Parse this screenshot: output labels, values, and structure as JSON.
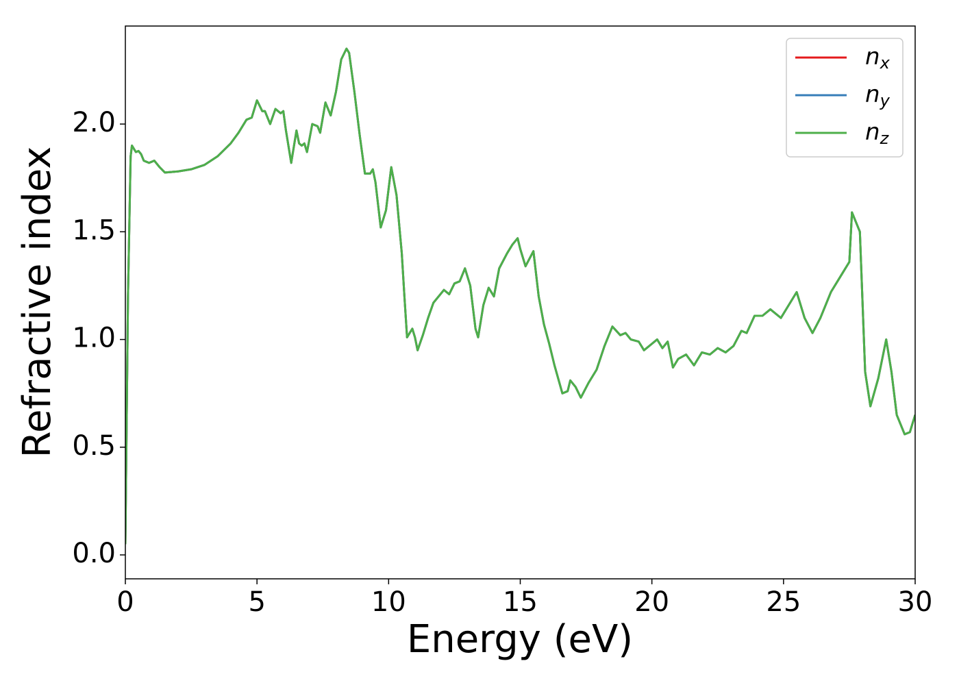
{
  "chart_data": {
    "type": "line",
    "xlabel": "Energy (eV)",
    "ylabel": "Refractive index",
    "x": [
      0,
      0.1,
      0.2,
      0.25,
      0.4,
      0.5,
      0.6,
      0.7,
      0.9,
      1.1,
      1.3,
      1.5,
      2,
      2.5,
      3,
      3.5,
      4,
      4.3,
      4.6,
      4.8,
      5.0,
      5.2,
      5.3,
      5.5,
      5.7,
      5.9,
      6.0,
      6.1,
      6.3,
      6.5,
      6.6,
      6.7,
      6.8,
      6.9,
      7.1,
      7.3,
      7.4,
      7.6,
      7.8,
      8.0,
      8.2,
      8.4,
      8.5,
      8.7,
      8.9,
      9.1,
      9.3,
      9.4,
      9.5,
      9.7,
      9.9,
      10.0,
      10.1,
      10.3,
      10.5,
      10.6,
      10.7,
      10.9,
      11.0,
      11.1,
      11.3,
      11.5,
      11.7,
      11.9,
      12.1,
      12.3,
      12.5,
      12.7,
      12.9,
      13.1,
      13.3,
      13.4,
      13.6,
      13.8,
      14.0,
      14.2,
      14.5,
      14.7,
      14.9,
      15.0,
      15.2,
      15.5,
      15.7,
      15.9,
      16.1,
      16.3,
      16.6,
      16.8,
      16.9,
      17.1,
      17.3,
      17.6,
      17.9,
      18.2,
      18.5,
      18.8,
      19.0,
      19.2,
      19.5,
      19.7,
      20.0,
      20.2,
      20.4,
      20.6,
      20.8,
      21.0,
      21.3,
      21.6,
      21.9,
      22.2,
      22.5,
      22.8,
      23.1,
      23.4,
      23.6,
      23.9,
      24.2,
      24.5,
      24.9,
      25.2,
      25.5,
      25.8,
      26.1,
      26.4,
      26.8,
      27.0,
      27.3,
      27.5,
      27.6,
      27.9,
      28.1,
      28.3,
      28.6,
      28.9,
      29.1,
      29.3,
      29.6,
      29.8,
      30.0
    ],
    "series": [
      {
        "name": "nx",
        "color": "#e41a1c",
        "values": [
          0.05,
          1.2,
          1.85,
          1.9,
          1.87,
          1.875,
          1.86,
          1.83,
          1.82,
          1.83,
          1.8,
          1.775,
          1.78,
          1.79,
          1.81,
          1.85,
          1.91,
          1.96,
          2.02,
          2.03,
          2.11,
          2.06,
          2.06,
          2.0,
          2.07,
          2.05,
          2.06,
          1.97,
          1.82,
          1.97,
          1.91,
          1.9,
          1.91,
          1.87,
          2.0,
          1.99,
          1.96,
          2.1,
          2.04,
          2.15,
          2.3,
          2.35,
          2.33,
          2.15,
          1.95,
          1.77,
          1.77,
          1.79,
          1.73,
          1.52,
          1.6,
          1.7,
          1.8,
          1.67,
          1.4,
          1.2,
          1.01,
          1.05,
          1.01,
          0.95,
          1.02,
          1.1,
          1.17,
          1.2,
          1.23,
          1.21,
          1.26,
          1.27,
          1.33,
          1.25,
          1.05,
          1.01,
          1.16,
          1.24,
          1.2,
          1.33,
          1.4,
          1.44,
          1.47,
          1.42,
          1.34,
          1.41,
          1.2,
          1.07,
          0.98,
          0.88,
          0.75,
          0.76,
          0.81,
          0.78,
          0.73,
          0.8,
          0.86,
          0.97,
          1.06,
          1.02,
          1.03,
          1.0,
          0.99,
          0.95,
          0.98,
          1.0,
          0.96,
          0.99,
          0.87,
          0.91,
          0.93,
          0.88,
          0.94,
          0.93,
          0.96,
          0.94,
          0.97,
          1.04,
          1.03,
          1.11,
          1.11,
          1.14,
          1.1,
          1.16,
          1.22,
          1.1,
          1.03,
          1.1,
          1.22,
          1.26,
          1.32,
          1.36,
          1.59,
          1.5,
          0.85,
          0.69,
          0.82,
          1.0,
          0.85,
          0.65,
          0.56,
          0.57,
          0.65
        ]
      },
      {
        "name": "ny",
        "color": "#377eb8",
        "values": [
          0.05,
          1.2,
          1.85,
          1.9,
          1.87,
          1.875,
          1.86,
          1.83,
          1.82,
          1.83,
          1.8,
          1.775,
          1.78,
          1.79,
          1.81,
          1.85,
          1.91,
          1.96,
          2.02,
          2.03,
          2.11,
          2.06,
          2.06,
          2.0,
          2.07,
          2.05,
          2.06,
          1.97,
          1.82,
          1.97,
          1.91,
          1.9,
          1.91,
          1.87,
          2.0,
          1.99,
          1.96,
          2.1,
          2.04,
          2.15,
          2.3,
          2.35,
          2.33,
          2.15,
          1.95,
          1.77,
          1.77,
          1.79,
          1.73,
          1.52,
          1.6,
          1.7,
          1.8,
          1.67,
          1.4,
          1.2,
          1.01,
          1.05,
          1.01,
          0.95,
          1.02,
          1.1,
          1.17,
          1.2,
          1.23,
          1.21,
          1.26,
          1.27,
          1.33,
          1.25,
          1.05,
          1.01,
          1.16,
          1.24,
          1.2,
          1.33,
          1.4,
          1.44,
          1.47,
          1.42,
          1.34,
          1.41,
          1.2,
          1.07,
          0.98,
          0.88,
          0.75,
          0.76,
          0.81,
          0.78,
          0.73,
          0.8,
          0.86,
          0.97,
          1.06,
          1.02,
          1.03,
          1.0,
          0.99,
          0.95,
          0.98,
          1.0,
          0.96,
          0.99,
          0.87,
          0.91,
          0.93,
          0.88,
          0.94,
          0.93,
          0.96,
          0.94,
          0.97,
          1.04,
          1.03,
          1.11,
          1.11,
          1.14,
          1.1,
          1.16,
          1.22,
          1.1,
          1.03,
          1.1,
          1.22,
          1.26,
          1.32,
          1.36,
          1.59,
          1.5,
          0.85,
          0.69,
          0.82,
          1.0,
          0.85,
          0.65,
          0.56,
          0.57,
          0.65
        ]
      },
      {
        "name": "nz",
        "color": "#4daf4a",
        "values": [
          0.05,
          1.2,
          1.85,
          1.9,
          1.87,
          1.875,
          1.86,
          1.83,
          1.82,
          1.83,
          1.8,
          1.775,
          1.78,
          1.79,
          1.81,
          1.85,
          1.91,
          1.96,
          2.02,
          2.03,
          2.11,
          2.06,
          2.06,
          2.0,
          2.07,
          2.05,
          2.06,
          1.97,
          1.82,
          1.97,
          1.91,
          1.9,
          1.91,
          1.87,
          2.0,
          1.99,
          1.96,
          2.1,
          2.04,
          2.15,
          2.3,
          2.35,
          2.33,
          2.15,
          1.95,
          1.77,
          1.77,
          1.79,
          1.73,
          1.52,
          1.6,
          1.7,
          1.8,
          1.67,
          1.4,
          1.2,
          1.01,
          1.05,
          1.01,
          0.95,
          1.02,
          1.1,
          1.17,
          1.2,
          1.23,
          1.21,
          1.26,
          1.27,
          1.33,
          1.25,
          1.05,
          1.01,
          1.16,
          1.24,
          1.2,
          1.33,
          1.4,
          1.44,
          1.47,
          1.42,
          1.34,
          1.41,
          1.2,
          1.07,
          0.98,
          0.88,
          0.75,
          0.76,
          0.81,
          0.78,
          0.73,
          0.8,
          0.86,
          0.97,
          1.06,
          1.02,
          1.03,
          1.0,
          0.99,
          0.95,
          0.98,
          1.0,
          0.96,
          0.99,
          0.87,
          0.91,
          0.93,
          0.88,
          0.94,
          0.93,
          0.96,
          0.94,
          0.97,
          1.04,
          1.03,
          1.11,
          1.11,
          1.14,
          1.1,
          1.16,
          1.22,
          1.1,
          1.03,
          1.1,
          1.22,
          1.26,
          1.32,
          1.36,
          1.59,
          1.5,
          0.85,
          0.69,
          0.82,
          1.0,
          0.85,
          0.65,
          0.56,
          0.57,
          0.65
        ]
      }
    ],
    "xlim": [
      0,
      30
    ],
    "xticks": [
      0,
      5,
      10,
      15,
      20,
      25,
      30
    ],
    "ylim": [
      -0.111,
      2.455
    ],
    "yticks": [
      {
        "value": 0,
        "label": "0.0"
      },
      0.5,
      {
        "value": 1,
        "label": "1.0"
      },
      1.5,
      {
        "value": 2,
        "label": "2.0"
      }
    ],
    "legend": "upper right",
    "grid": false
  }
}
